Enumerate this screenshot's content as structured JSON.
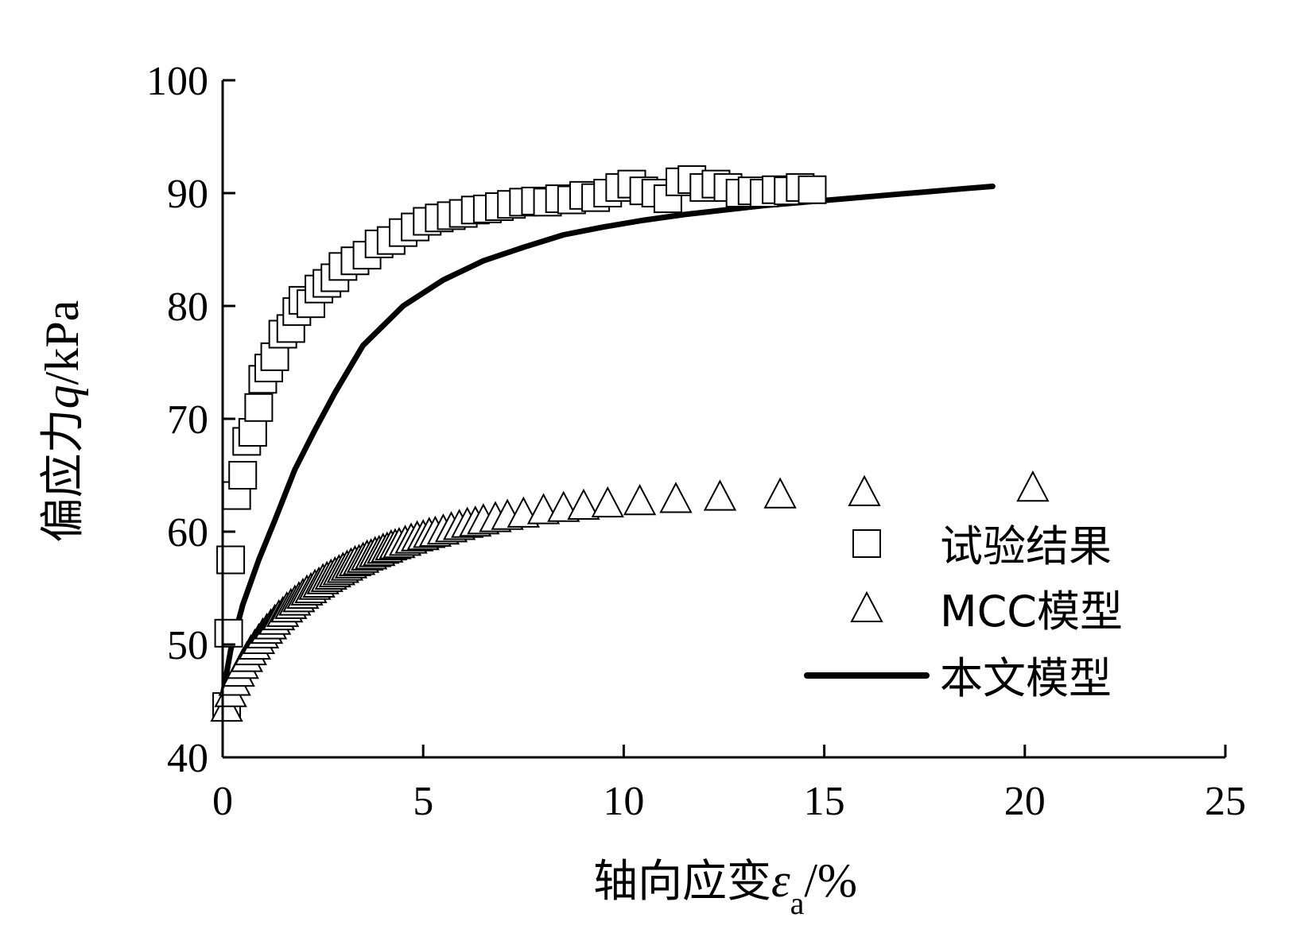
{
  "chart_data": {
    "type": "scatter",
    "xlabel": {
      "prefix": "轴向应变",
      "symbol": "ε",
      "subscript": "a",
      "suffix": "/%"
    },
    "ylabel": {
      "prefix": "偏应力",
      "symbol": "q",
      "suffix": "/kPa"
    },
    "xlim": [
      0,
      25
    ],
    "ylim": [
      40,
      100
    ],
    "xticks": [
      0,
      5,
      10,
      15,
      20,
      25
    ],
    "yticks": [
      40,
      50,
      60,
      70,
      80,
      90,
      100
    ],
    "grid": false,
    "legend_position": "right",
    "series": [
      {
        "name": "试验结果",
        "marker": "square",
        "style": "markers",
        "points": [
          [
            0.1,
            44.5
          ],
          [
            0.15,
            51
          ],
          [
            0.2,
            57.5
          ],
          [
            0.35,
            63.2
          ],
          [
            0.5,
            65
          ],
          [
            0.6,
            68
          ],
          [
            0.75,
            68.8
          ],
          [
            0.9,
            71
          ],
          [
            1.0,
            73.5
          ],
          [
            1.15,
            74.5
          ],
          [
            1.3,
            75.5
          ],
          [
            1.5,
            77.5
          ],
          [
            1.7,
            78
          ],
          [
            1.85,
            79.5
          ],
          [
            2.0,
            80.5
          ],
          [
            2.2,
            80.2
          ],
          [
            2.4,
            81.5
          ],
          [
            2.6,
            82
          ],
          [
            2.8,
            82.5
          ],
          [
            3.0,
            83.5
          ],
          [
            3.3,
            84
          ],
          [
            3.6,
            84.5
          ],
          [
            3.9,
            85.5
          ],
          [
            4.2,
            85.8
          ],
          [
            4.5,
            86.5
          ],
          [
            4.8,
            87
          ],
          [
            5.1,
            87.5
          ],
          [
            5.4,
            87.8
          ],
          [
            5.7,
            88
          ],
          [
            6.0,
            88.2
          ],
          [
            6.3,
            88.5
          ],
          [
            6.6,
            88.6
          ],
          [
            6.9,
            88.8
          ],
          [
            7.2,
            89
          ],
          [
            7.5,
            89.2
          ],
          [
            7.8,
            89.3
          ],
          [
            8.1,
            89.2
          ],
          [
            8.4,
            89.5
          ],
          [
            8.7,
            89.4
          ],
          [
            9.0,
            89.8
          ],
          [
            9.3,
            89.6
          ],
          [
            9.6,
            90
          ],
          [
            9.9,
            90.5
          ],
          [
            10.2,
            90.8
          ],
          [
            10.5,
            90.2
          ],
          [
            10.8,
            90
          ],
          [
            11.1,
            89.5
          ],
          [
            11.4,
            91
          ],
          [
            11.7,
            91.2
          ],
          [
            12.0,
            90.5
          ],
          [
            12.3,
            90.8
          ],
          [
            12.6,
            90.5
          ],
          [
            12.9,
            90
          ],
          [
            13.2,
            90.2
          ],
          [
            13.5,
            90
          ],
          [
            13.8,
            90.3
          ],
          [
            14.1,
            90.2
          ],
          [
            14.4,
            90.5
          ],
          [
            14.7,
            90.3
          ]
        ]
      },
      {
        "name": "MCC模型",
        "marker": "triangle",
        "style": "markers",
        "points": [
          [
            0.1,
            44.5
          ],
          [
            0.2,
            45.8
          ],
          [
            0.3,
            46.8
          ],
          [
            0.4,
            47.6
          ],
          [
            0.5,
            48.3
          ],
          [
            0.6,
            48.9
          ],
          [
            0.7,
            49.5
          ],
          [
            0.8,
            50.0
          ],
          [
            0.9,
            50.5
          ],
          [
            1.0,
            51.0
          ],
          [
            1.1,
            51.4
          ],
          [
            1.2,
            51.8
          ],
          [
            1.3,
            52.2
          ],
          [
            1.4,
            52.6
          ],
          [
            1.5,
            52.9
          ],
          [
            1.6,
            53.3
          ],
          [
            1.7,
            53.6
          ],
          [
            1.8,
            53.9
          ],
          [
            1.9,
            54.2
          ],
          [
            2.0,
            54.5
          ],
          [
            2.1,
            54.8
          ],
          [
            2.2,
            55.0
          ],
          [
            2.3,
            55.3
          ],
          [
            2.4,
            55.5
          ],
          [
            2.5,
            55.8
          ],
          [
            2.6,
            56.0
          ],
          [
            2.7,
            56.2
          ],
          [
            2.8,
            56.4
          ],
          [
            2.9,
            56.6
          ],
          [
            3.0,
            56.8
          ],
          [
            3.1,
            57.0
          ],
          [
            3.2,
            57.2
          ],
          [
            3.3,
            57.4
          ],
          [
            3.4,
            57.5
          ],
          [
            3.5,
            57.7
          ],
          [
            3.6,
            57.9
          ],
          [
            3.7,
            58.0
          ],
          [
            3.8,
            58.2
          ],
          [
            3.9,
            58.3
          ],
          [
            4.0,
            58.5
          ],
          [
            4.1,
            58.6
          ],
          [
            4.2,
            58.8
          ],
          [
            4.3,
            58.9
          ],
          [
            4.4,
            59.0
          ],
          [
            4.55,
            59.2
          ],
          [
            4.7,
            59.4
          ],
          [
            4.85,
            59.6
          ],
          [
            5.0,
            59.7
          ],
          [
            5.15,
            59.9
          ],
          [
            5.3,
            60.0
          ],
          [
            5.5,
            60.2
          ],
          [
            5.7,
            60.4
          ],
          [
            5.9,
            60.6
          ],
          [
            6.1,
            60.8
          ],
          [
            6.3,
            60.9
          ],
          [
            6.5,
            61.1
          ],
          [
            6.8,
            61.3
          ],
          [
            7.1,
            61.5
          ],
          [
            7.5,
            61.7
          ],
          [
            8.0,
            62.0
          ],
          [
            8.5,
            62.2
          ],
          [
            9.0,
            62.4
          ],
          [
            9.6,
            62.6
          ],
          [
            10.4,
            62.8
          ],
          [
            11.3,
            63.0
          ],
          [
            12.4,
            63.2
          ],
          [
            13.9,
            63.4
          ],
          [
            16.0,
            63.6
          ],
          [
            20.2,
            64.0
          ]
        ]
      },
      {
        "name": "本文模型",
        "style": "line",
        "points": [
          [
            0,
            45.5
          ],
          [
            0.2,
            49.5
          ],
          [
            0.5,
            53.5
          ],
          [
            0.9,
            57.5
          ],
          [
            1.3,
            61
          ],
          [
            1.8,
            65.5
          ],
          [
            2.3,
            69
          ],
          [
            2.8,
            72.3
          ],
          [
            3.5,
            76.5
          ],
          [
            4.5,
            80
          ],
          [
            5.5,
            82.3
          ],
          [
            6.5,
            84
          ],
          [
            7.5,
            85.2
          ],
          [
            8.5,
            86.3
          ],
          [
            9.5,
            87
          ],
          [
            10.5,
            87.6
          ],
          [
            11.5,
            88.1
          ],
          [
            12.5,
            88.5
          ],
          [
            13.5,
            88.9
          ],
          [
            14.5,
            89.2
          ],
          [
            15.5,
            89.5
          ],
          [
            16.5,
            89.8
          ],
          [
            17.5,
            90.1
          ],
          [
            18.5,
            90.4
          ],
          [
            19.2,
            90.6
          ]
        ]
      }
    ],
    "legend": [
      {
        "marker": "square",
        "label": "试验结果"
      },
      {
        "marker": "triangle",
        "label": "MCC模型"
      },
      {
        "marker": "line",
        "label": "本文模型"
      }
    ]
  }
}
